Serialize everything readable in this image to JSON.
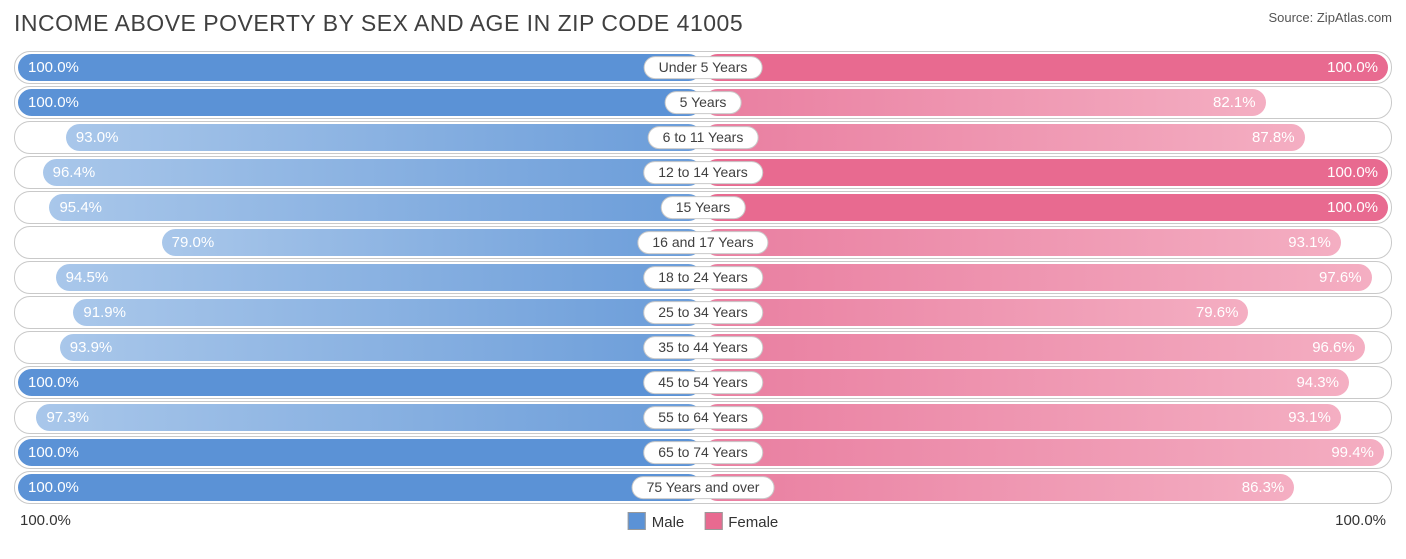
{
  "title": "INCOME ABOVE POVERTY BY SEX AND AGE IN ZIP CODE 41005",
  "source": "Source: ZipAtlas.com",
  "axis": {
    "left": "100.0%",
    "right": "100.0%"
  },
  "legend": {
    "male": "Male",
    "female": "Female"
  },
  "colors": {
    "male_solid": "#5b92d6",
    "male_light_from": "#a9c7ea",
    "male_light_to": "#6a9cd9",
    "female_solid": "#e86a90",
    "female_light_from": "#f4aec2",
    "female_light_to": "#e97ea0",
    "row_border": "#c9c9c9",
    "background": "#ffffff",
    "text_on_bar": "#ffffff"
  },
  "rows": [
    {
      "label": "Under 5 Years",
      "male": 100.0,
      "female": 100.0,
      "male_label": "100.0%",
      "female_label": "100.0%"
    },
    {
      "label": "5 Years",
      "male": 100.0,
      "female": 82.1,
      "male_label": "100.0%",
      "female_label": "82.1%"
    },
    {
      "label": "6 to 11 Years",
      "male": 93.0,
      "female": 87.8,
      "male_label": "93.0%",
      "female_label": "87.8%"
    },
    {
      "label": "12 to 14 Years",
      "male": 96.4,
      "female": 100.0,
      "male_label": "96.4%",
      "female_label": "100.0%"
    },
    {
      "label": "15 Years",
      "male": 95.4,
      "female": 100.0,
      "male_label": "95.4%",
      "female_label": "100.0%"
    },
    {
      "label": "16 and 17 Years",
      "male": 79.0,
      "female": 93.1,
      "male_label": "79.0%",
      "female_label": "93.1%"
    },
    {
      "label": "18 to 24 Years",
      "male": 94.5,
      "female": 97.6,
      "male_label": "94.5%",
      "female_label": "97.6%"
    },
    {
      "label": "25 to 34 Years",
      "male": 91.9,
      "female": 79.6,
      "male_label": "91.9%",
      "female_label": "79.6%"
    },
    {
      "label": "35 to 44 Years",
      "male": 93.9,
      "female": 96.6,
      "male_label": "93.9%",
      "female_label": "96.6%"
    },
    {
      "label": "45 to 54 Years",
      "male": 100.0,
      "female": 94.3,
      "male_label": "100.0%",
      "female_label": "94.3%"
    },
    {
      "label": "55 to 64 Years",
      "male": 97.3,
      "female": 93.1,
      "male_label": "97.3%",
      "female_label": "93.1%"
    },
    {
      "label": "65 to 74 Years",
      "male": 100.0,
      "female": 99.4,
      "male_label": "100.0%",
      "female_label": "99.4%"
    },
    {
      "label": "75 Years and over",
      "male": 100.0,
      "female": 86.3,
      "male_label": "100.0%",
      "female_label": "86.3%"
    }
  ]
}
